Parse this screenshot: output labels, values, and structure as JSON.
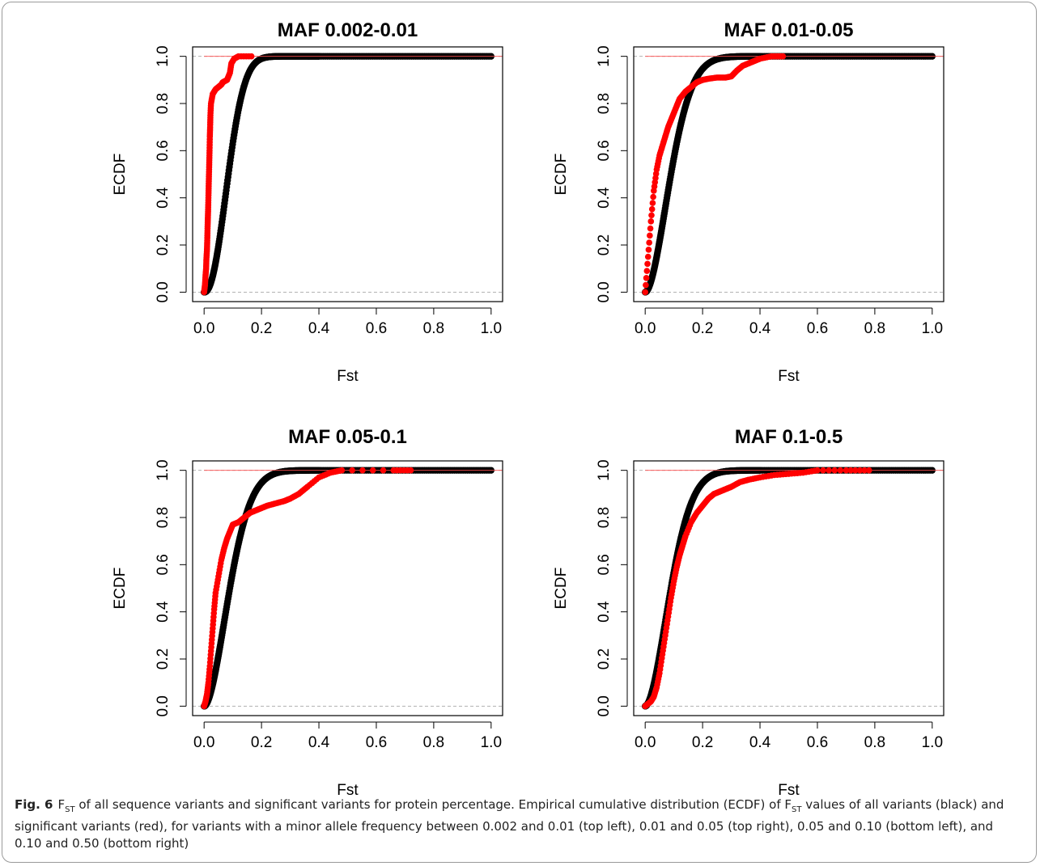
{
  "chart_data": [
    {
      "type": "scatter",
      "title": "MAF 0.002-0.01",
      "xlabel": "Fst",
      "ylabel": "ECDF",
      "xlim": [
        0,
        1
      ],
      "ylim": [
        0,
        1
      ],
      "xticks": [
        "0.0",
        "0.2",
        "0.4",
        "0.6",
        "0.8",
        "1.0"
      ],
      "yticks": [
        "0.0",
        "0.2",
        "0.4",
        "0.6",
        "0.8",
        "1.0"
      ],
      "reference_lines": [
        0,
        1
      ],
      "all_variants": {
        "color": "#000000",
        "shape_k": 2.2,
        "scale": 0.1
      },
      "series": [
        {
          "color": "#ff0000",
          "x": [
            0.0,
            0.003,
            0.005,
            0.007,
            0.008,
            0.01,
            0.011,
            0.012,
            0.013,
            0.014,
            0.015,
            0.016,
            0.017,
            0.018,
            0.019,
            0.02,
            0.021,
            0.022,
            0.024,
            0.03,
            0.04,
            0.05,
            0.06,
            0.065,
            0.08,
            0.09,
            0.095,
            0.105,
            0.12,
            0.165
          ],
          "y": [
            0.0,
            0.03,
            0.07,
            0.1,
            0.14,
            0.18,
            0.22,
            0.27,
            0.31,
            0.35,
            0.4,
            0.45,
            0.5,
            0.55,
            0.6,
            0.66,
            0.7,
            0.75,
            0.8,
            0.84,
            0.86,
            0.87,
            0.88,
            0.89,
            0.9,
            0.93,
            0.97,
            0.99,
            1.0,
            1.0
          ]
        }
      ]
    },
    {
      "type": "scatter",
      "title": "MAF 0.01-0.05",
      "xlabel": "Fst",
      "ylabel": "ECDF",
      "xlim": [
        0,
        1
      ],
      "ylim": [
        0,
        1
      ],
      "xticks": [
        "0.0",
        "0.2",
        "0.4",
        "0.6",
        "0.8",
        "1.0"
      ],
      "yticks": [
        "0.0",
        "0.2",
        "0.4",
        "0.6",
        "0.8",
        "1.0"
      ],
      "reference_lines": [
        0,
        1
      ],
      "all_variants": {
        "color": "#000000",
        "shape_k": 1.8,
        "scale": 0.11
      },
      "series": [
        {
          "color": "#ff0000",
          "x": [
            0.0,
            0.01,
            0.02,
            0.03,
            0.04,
            0.05,
            0.06,
            0.07,
            0.08,
            0.09,
            0.1,
            0.11,
            0.12,
            0.14,
            0.16,
            0.18,
            0.2,
            0.22,
            0.25,
            0.28,
            0.3,
            0.32,
            0.34,
            0.36,
            0.38,
            0.4,
            0.44,
            0.48
          ],
          "y": [
            0.0,
            0.15,
            0.3,
            0.43,
            0.52,
            0.58,
            0.62,
            0.66,
            0.7,
            0.73,
            0.76,
            0.79,
            0.82,
            0.85,
            0.87,
            0.89,
            0.9,
            0.905,
            0.91,
            0.91,
            0.915,
            0.94,
            0.96,
            0.97,
            0.98,
            0.99,
            1.0,
            1.0
          ]
        }
      ]
    },
    {
      "type": "scatter",
      "title": "MAF 0.05-0.1",
      "xlabel": "Fst",
      "ylabel": "ECDF",
      "xlim": [
        0,
        1
      ],
      "ylim": [
        0,
        1
      ],
      "xticks": [
        "0.0",
        "0.2",
        "0.4",
        "0.6",
        "0.8",
        "1.0"
      ],
      "yticks": [
        "0.0",
        "0.2",
        "0.4",
        "0.6",
        "0.8",
        "1.0"
      ],
      "reference_lines": [
        0,
        1
      ],
      "all_variants": {
        "color": "#000000",
        "shape_k": 1.8,
        "scale": 0.11
      },
      "series": [
        {
          "color": "#ff0000",
          "x": [
            0.0,
            0.005,
            0.01,
            0.015,
            0.02,
            0.025,
            0.03,
            0.035,
            0.04,
            0.05,
            0.06,
            0.07,
            0.08,
            0.09,
            0.1,
            0.12,
            0.14,
            0.16,
            0.18,
            0.2,
            0.22,
            0.25,
            0.28,
            0.3,
            0.33,
            0.36,
            0.4,
            0.44,
            0.48,
            0.66,
            0.72
          ],
          "y": [
            0.0,
            0.02,
            0.05,
            0.1,
            0.17,
            0.25,
            0.33,
            0.41,
            0.48,
            0.55,
            0.62,
            0.67,
            0.71,
            0.74,
            0.77,
            0.78,
            0.8,
            0.82,
            0.83,
            0.84,
            0.85,
            0.86,
            0.87,
            0.88,
            0.9,
            0.93,
            0.97,
            0.99,
            1.0,
            1.0,
            1.0
          ]
        }
      ]
    },
    {
      "type": "scatter",
      "title": "MAF 0.1-0.5",
      "xlabel": "Fst",
      "ylabel": "ECDF",
      "xlim": [
        0,
        1
      ],
      "ylim": [
        0,
        1
      ],
      "xticks": [
        "0.0",
        "0.2",
        "0.4",
        "0.6",
        "0.8",
        "1.0"
      ],
      "yticks": [
        "0.0",
        "0.2",
        "0.4",
        "0.6",
        "0.8",
        "1.0"
      ],
      "reference_lines": [
        0,
        1
      ],
      "all_variants": {
        "color": "#000000",
        "shape_k": 1.8,
        "scale": 0.11
      },
      "series": [
        {
          "color": "#ff0000",
          "x": [
            0.0,
            0.01,
            0.02,
            0.03,
            0.04,
            0.05,
            0.06,
            0.07,
            0.08,
            0.09,
            0.1,
            0.11,
            0.12,
            0.13,
            0.14,
            0.16,
            0.18,
            0.2,
            0.22,
            0.24,
            0.26,
            0.28,
            0.3,
            0.33,
            0.36,
            0.4,
            0.45,
            0.5,
            0.55,
            0.6,
            0.7,
            0.78
          ],
          "y": [
            0.0,
            0.01,
            0.02,
            0.04,
            0.08,
            0.14,
            0.22,
            0.3,
            0.38,
            0.46,
            0.53,
            0.59,
            0.64,
            0.68,
            0.72,
            0.78,
            0.82,
            0.85,
            0.88,
            0.9,
            0.91,
            0.92,
            0.93,
            0.95,
            0.96,
            0.97,
            0.98,
            0.985,
            0.99,
            1.0,
            1.0,
            1.0
          ]
        }
      ]
    }
  ],
  "caption": {
    "label": "Fig. 6",
    "fst_symbol": "F",
    "fst_sub": "ST",
    "part1": " of all sequence variants and significant variants for protein percentage. Empirical cumulative distribution (ECDF) of ",
    "part2": " values of all variants (black) and significant variants (red), for variants with a minor allele frequency between 0.002 and 0.01 (top left), 0.01 and 0.05 (top right), 0.05 and 0.10 (bottom left), and 0.10 and 0.50 (bottom right)"
  }
}
